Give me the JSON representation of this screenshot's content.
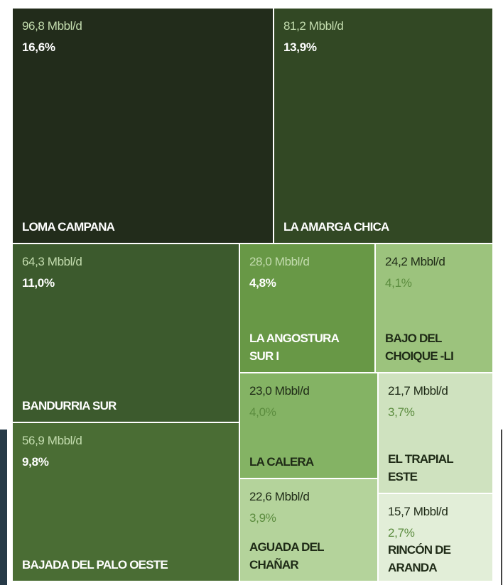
{
  "chart_data": {
    "type": "treemap",
    "categories": [
      "LOMA CAMPANA",
      "LA AMARGA CHICA",
      "BANDURRIA SUR",
      "BAJADA DEL PALO OESTE",
      "LA ANGOSTURA SUR I",
      "BAJO DEL CHOIQUE -LI",
      "LA CALERA",
      "EL TRAPIAL ESTE",
      "AGUADA DEL CHAÑAR",
      "RINCÓN DE ARANDA"
    ],
    "values": [
      96.8,
      81.2,
      64.3,
      56.9,
      28.0,
      24.2,
      23.0,
      21.7,
      22.6,
      15.7
    ],
    "value_labels": [
      "96,8 Mbbl/d",
      "81,2 Mbbl/d",
      "64,3 Mbbl/d",
      "56,9 Mbbl/d",
      "28,0 Mbbl/d",
      "24,2 Mbbl/d",
      "23,0 Mbbl/d",
      "21,7 Mbbl/d",
      "22,6 Mbbl/d",
      "15,7 Mbbl/d"
    ],
    "shares": [
      16.6,
      13.9,
      11.0,
      9.8,
      4.8,
      4.1,
      4.0,
      3.7,
      3.9,
      2.7
    ],
    "share_labels": [
      "16,6%",
      "13,9%",
      "11,0%",
      "9,8%",
      "4,8%",
      "4,1%",
      "4,0%",
      "3,7%",
      "3,9%",
      "2,7%"
    ],
    "colors": [
      "#222c1b",
      "#324824",
      "#3c5a2d",
      "#4a6d34",
      "#689846",
      "#9cc37d",
      "#84b364",
      "#cfe2bf",
      "#b4d39b",
      "#e2eed8"
    ]
  }
}
